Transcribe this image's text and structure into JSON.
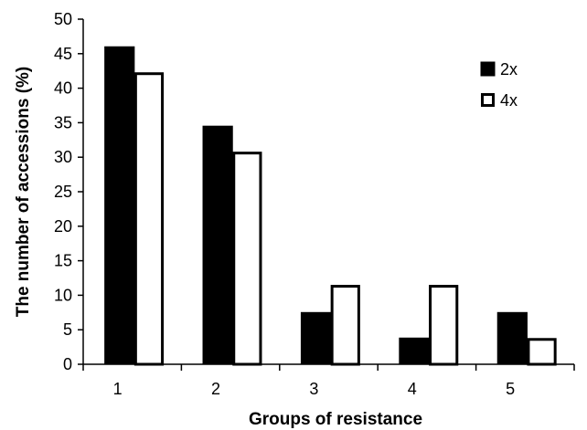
{
  "chart_data": {
    "type": "bar",
    "title": "",
    "xlabel": "Groups of resistance",
    "ylabel": "The number of accessions (%)",
    "categories": [
      "1",
      "2",
      "3",
      "4",
      "5"
    ],
    "series": [
      {
        "name": "2x",
        "values": [
          46,
          34.5,
          7.5,
          3.8,
          7.5
        ],
        "color": "#000000"
      },
      {
        "name": "4x",
        "values": [
          42.3,
          30.8,
          11.5,
          11.5,
          3.8
        ],
        "color": "#ffffff"
      }
    ],
    "ylim": [
      0,
      50
    ],
    "yticks": [
      "0",
      "5",
      "10",
      "15",
      "20",
      "25",
      "30",
      "35",
      "40",
      "45",
      "50"
    ],
    "grid": false,
    "legend_position": "top-right"
  }
}
